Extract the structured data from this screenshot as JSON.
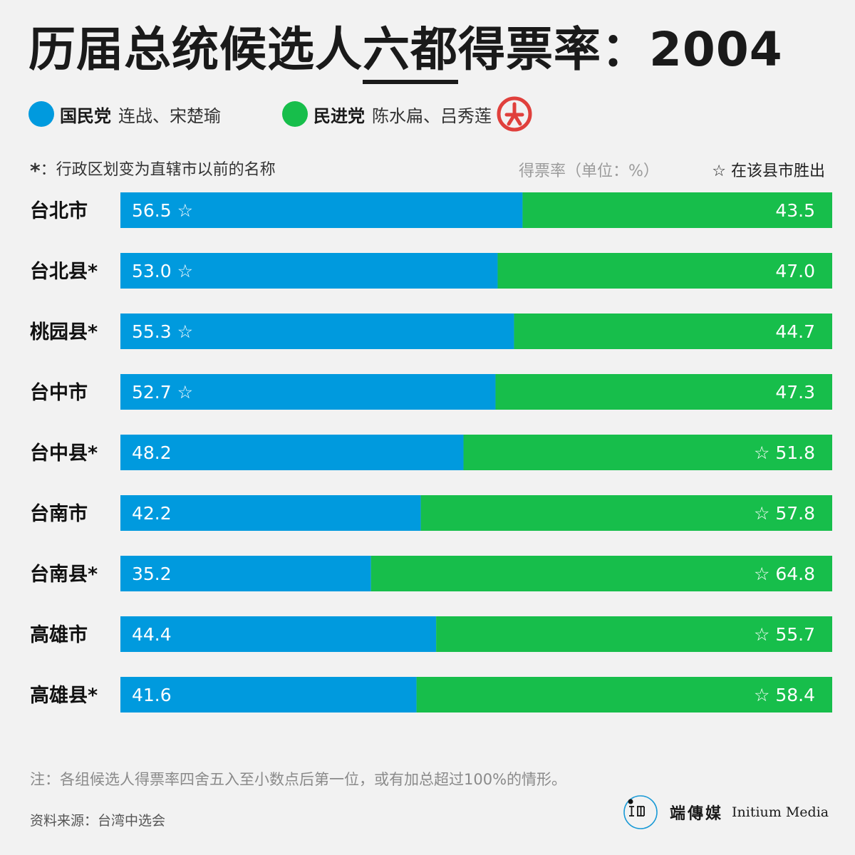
{
  "title": {
    "prefix": "历届总统候选人",
    "highlight": "六都",
    "suffix": "得票率：2004"
  },
  "legend": {
    "kmt": {
      "party": "国民党",
      "candidates": "连战、宋楚瑜",
      "color": "#009ade"
    },
    "dpp": {
      "party": "民进党",
      "candidates": "陈水扁、吕秀莲",
      "color": "#17be4b"
    },
    "winner_mark_icon": "ballot-stamp-icon",
    "winner_mark_color": "#e0403c"
  },
  "footnotes": {
    "asterisk": "*",
    "asterisk_text": "：行政区划变为直辖市以前的名称",
    "unit": "得票率（单位：%）",
    "star_legend": "☆ 在该县市胜出"
  },
  "chart_data": {
    "type": "bar",
    "orientation": "horizontal",
    "stacked": true,
    "categories": [
      "台北市",
      "台北县*",
      "桃园县*",
      "台中市",
      "台中县*",
      "台南市",
      "台南县*",
      "高雄市",
      "高雄县*"
    ],
    "series": [
      {
        "name": "国民党",
        "color": "#009ade",
        "values": [
          56.5,
          53.0,
          55.3,
          52.7,
          48.2,
          42.2,
          35.2,
          44.4,
          41.6
        ]
      },
      {
        "name": "民进党",
        "color": "#17be4b",
        "values": [
          43.5,
          47.0,
          44.7,
          47.3,
          51.8,
          57.8,
          64.8,
          55.7,
          58.4
        ]
      }
    ],
    "value_labels": {
      "kmt": [
        "56.5",
        "53.0",
        "55.3",
        "52.7",
        "48.2",
        "42.2",
        "35.2",
        "44.4",
        "41.6"
      ],
      "dpp": [
        "43.5",
        "47.0",
        "44.7",
        "47.3",
        "51.8",
        "57.8",
        "64.8",
        "55.7",
        "58.4"
      ]
    },
    "winners": [
      "kmt",
      "kmt",
      "kmt",
      "kmt",
      "dpp",
      "dpp",
      "dpp",
      "dpp",
      "dpp"
    ],
    "winner_symbol": "☆",
    "xlim": [
      0,
      100
    ]
  },
  "note": "注：各组候选人得票率四舍五入至小数点后第一位，或有加总超过100%的情形。",
  "source": "资料来源：台湾中选会",
  "brand": {
    "logo_icon": "initium-logo-icon",
    "name_cn": "端傳媒",
    "name_en": "Initium Media"
  }
}
